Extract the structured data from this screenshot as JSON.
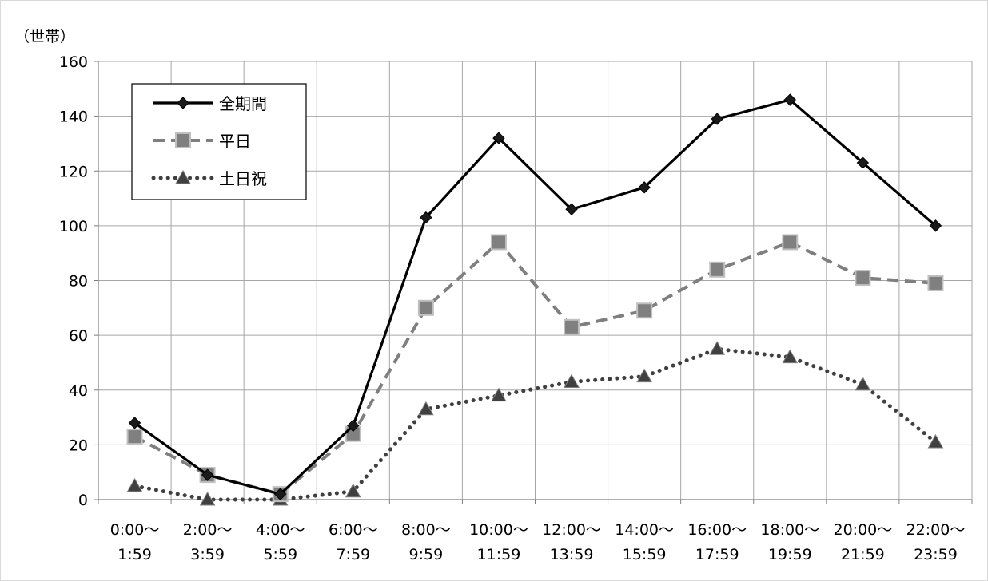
{
  "chart_data": {
    "type": "line",
    "title": "",
    "unit_label": "（世帯）",
    "xlabel": "",
    "ylabel": "",
    "ylim": [
      0,
      160
    ],
    "yticks": [
      0,
      20,
      40,
      60,
      80,
      100,
      120,
      140,
      160
    ],
    "grid": true,
    "legend_position": "top-left",
    "categories": [
      [
        "0:00〜",
        "1:59"
      ],
      [
        "2:00〜",
        "3:59"
      ],
      [
        "4:00〜",
        "5:59"
      ],
      [
        "6:00〜",
        "7:59"
      ],
      [
        "8:00〜",
        "9:59"
      ],
      [
        "10:00〜",
        "11:59"
      ],
      [
        "12:00〜",
        "13:59"
      ],
      [
        "14:00〜",
        "15:59"
      ],
      [
        "16:00〜",
        "17:59"
      ],
      [
        "18:00〜",
        "19:59"
      ],
      [
        "20:00〜",
        "21:59"
      ],
      [
        "22:00〜",
        "23:59"
      ]
    ],
    "series": [
      {
        "name": "全期間",
        "style": "solid",
        "marker": "diamond",
        "color": "#000000",
        "values": [
          28,
          9,
          2,
          27,
          103,
          132,
          106,
          114,
          139,
          146,
          123,
          100
        ]
      },
      {
        "name": "平日",
        "style": "dashed",
        "marker": "square",
        "color": "#7f7f7f",
        "values": [
          23,
          9,
          2,
          24,
          70,
          94,
          63,
          69,
          84,
          94,
          81,
          79
        ]
      },
      {
        "name": "土日祝",
        "style": "dotted",
        "marker": "triangle",
        "color": "#404040",
        "values": [
          5,
          0,
          0,
          3,
          33,
          38,
          43,
          45,
          55,
          52,
          42,
          21
        ]
      }
    ]
  }
}
